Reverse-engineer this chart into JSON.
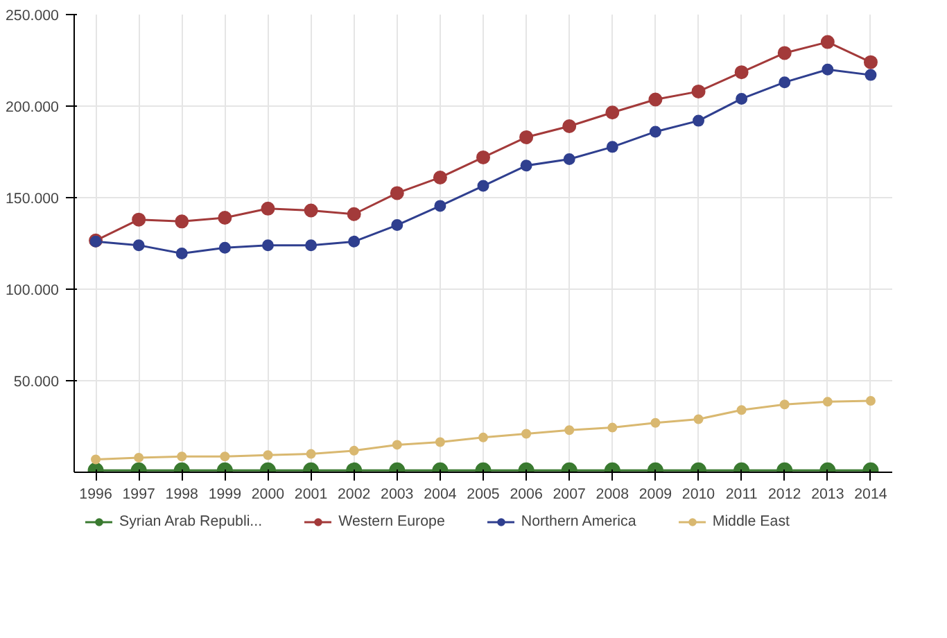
{
  "chart_data": {
    "type": "line",
    "categories": [
      "1996",
      "1997",
      "1998",
      "1999",
      "2000",
      "2001",
      "2002",
      "2003",
      "2004",
      "2005",
      "2006",
      "2007",
      "2008",
      "2009",
      "2010",
      "2011",
      "2012",
      "2013",
      "2014"
    ],
    "ylim": [
      0,
      250000
    ],
    "yticks": [
      {
        "value": 50000,
        "label": "50.000"
      },
      {
        "value": 100000,
        "label": "100.000"
      },
      {
        "value": 150000,
        "label": "150.000"
      },
      {
        "value": 200000,
        "label": "200.000"
      },
      {
        "value": 250000,
        "label": "250.000"
      }
    ],
    "grid": true,
    "legend": "bottom",
    "marker": "circle",
    "line_style": "solid",
    "series": [
      {
        "name": "Syrian Arab Republi...",
        "color": "#3a7a30",
        "values": [
          1000,
          1000,
          1000,
          1000,
          1000,
          1000,
          1000,
          1000,
          1000,
          1000,
          1000,
          1000,
          1000,
          1000,
          1000,
          1000,
          1000,
          1000,
          1000
        ]
      },
      {
        "name": "Western Europe",
        "color": "#a33a3a",
        "values": [
          126600,
          138000,
          137000,
          139000,
          144000,
          143000,
          141000,
          152500,
          161000,
          172000,
          183000,
          189000,
          196500,
          203600,
          208000,
          218500,
          229000,
          235000,
          224000
        ]
      },
      {
        "name": "Northern America",
        "color": "#2f3f8f",
        "values": [
          126000,
          124000,
          119500,
          122600,
          124000,
          124000,
          126000,
          135000,
          145500,
          156400,
          167500,
          171000,
          177700,
          186000,
          192000,
          204000,
          213000,
          220000,
          217000
        ]
      },
      {
        "name": "Middle East",
        "color": "#d9b870",
        "values": [
          7000,
          8000,
          8600,
          8600,
          9400,
          10000,
          11800,
          15000,
          16500,
          19000,
          21000,
          23000,
          24400,
          27000,
          29000,
          34000,
          37000,
          38500,
          39000
        ]
      }
    ]
  }
}
